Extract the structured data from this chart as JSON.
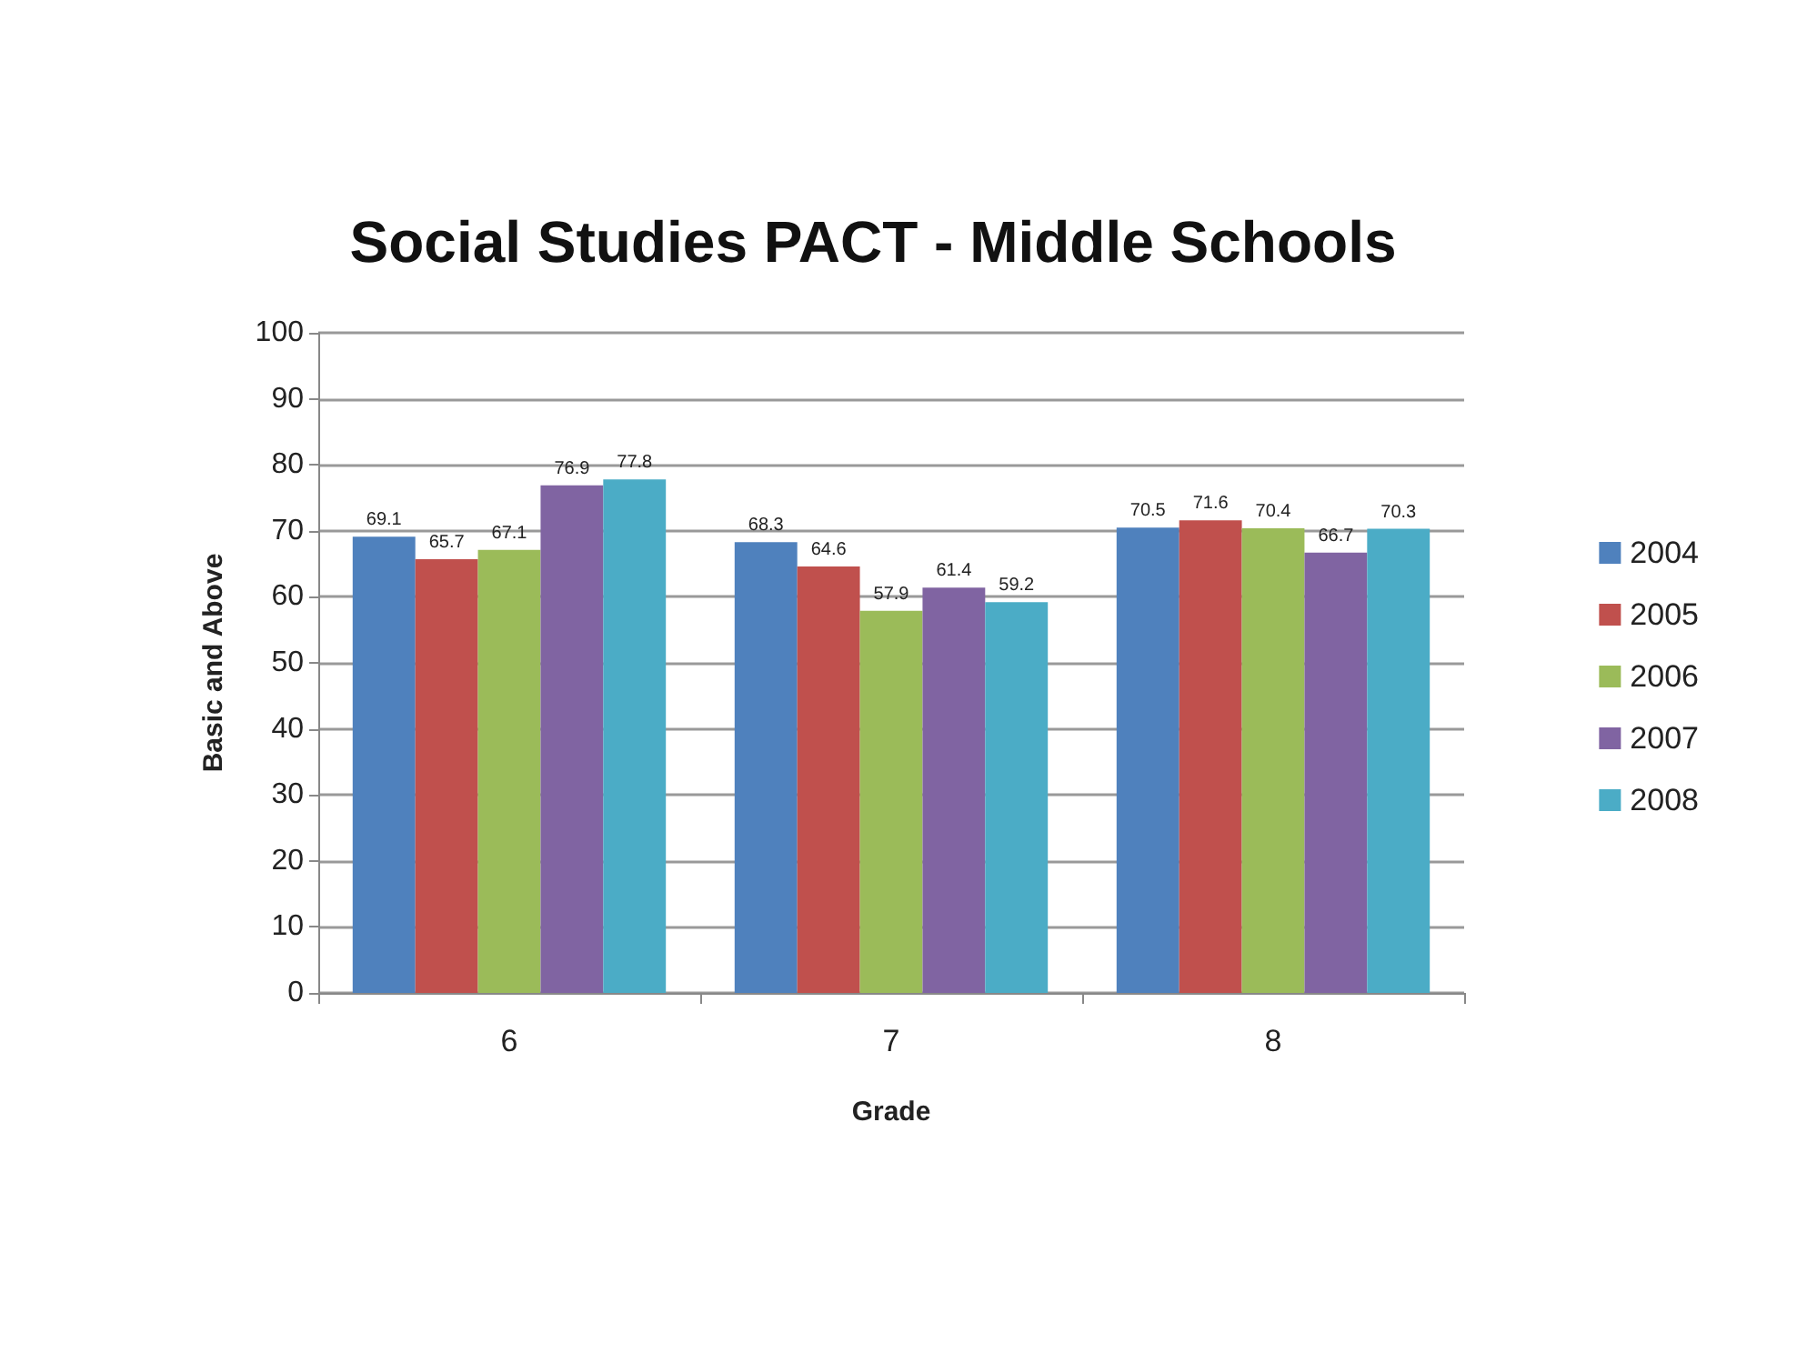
{
  "chart_data": {
    "type": "bar",
    "title": "Social Studies PACT - Middle Schools",
    "xlabel": "Grade",
    "ylabel": "Basic and Above",
    "categories": [
      "6",
      "7",
      "8"
    ],
    "series": [
      {
        "name": "2004",
        "color": "#4f81bd",
        "values": [
          69.1,
          68.3,
          70.5
        ]
      },
      {
        "name": "2005",
        "color": "#c0504d",
        "values": [
          65.7,
          64.6,
          71.6
        ]
      },
      {
        "name": "2006",
        "color": "#9bbb59",
        "values": [
          67.1,
          57.9,
          70.4
        ]
      },
      {
        "name": "2007",
        "color": "#8064a2",
        "values": [
          76.9,
          61.4,
          66.7
        ]
      },
      {
        "name": "2008",
        "color": "#4bacc6",
        "values": [
          77.8,
          59.2,
          70.3
        ]
      }
    ],
    "ylim": [
      0,
      100
    ],
    "yticks": [
      0,
      10,
      20,
      30,
      40,
      50,
      60,
      70,
      80,
      90,
      100
    ],
    "grid": "y",
    "legend": "right",
    "data_labels": true
  }
}
